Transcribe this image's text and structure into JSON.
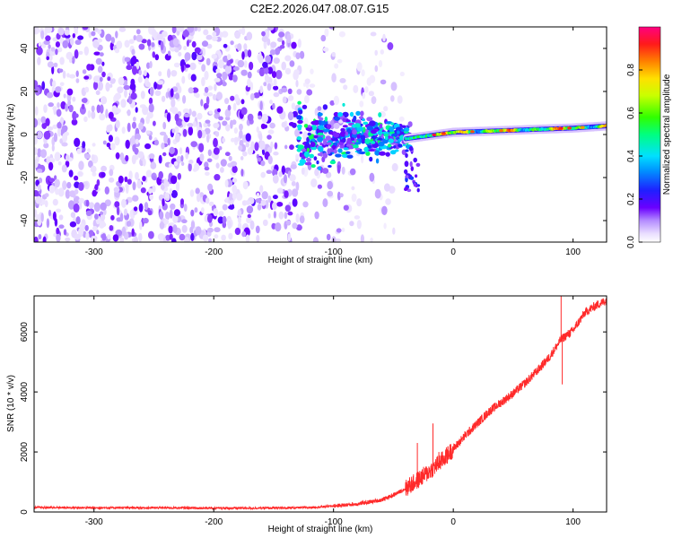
{
  "title": "C2E2.2026.047.08.07.G15",
  "chart_data": [
    {
      "type": "heatmap",
      "xlabel": "Height of straight line (km)",
      "ylabel": "Frequency (Hz)",
      "xlim": [
        -350,
        128
      ],
      "ylim": [
        -50,
        50
      ],
      "x_ticks": [
        -300,
        -200,
        -100,
        0,
        100
      ],
      "x_tick_labels": [
        "-300",
        "-200",
        "-100",
        "0",
        "100"
      ],
      "y_ticks": [
        -40,
        -20,
        0,
        20,
        40
      ],
      "y_tick_labels": [
        "-40",
        "-20",
        "0",
        "20",
        "40"
      ],
      "colorbar": {
        "label": "Normalized spectral amplitude",
        "range": [
          0,
          1
        ],
        "ticks": [
          0.0,
          0.2,
          0.4,
          0.6,
          0.8
        ],
        "tick_labels": [
          "0.0",
          "0.2",
          "0.4",
          "0.6",
          "0.8"
        ],
        "colormap": "white-purple-blue-cyan-green-yellow-red-magenta"
      },
      "features": [
        {
          "name": "noise-floor",
          "x_range": [
            -350,
            -130
          ],
          "frequency_range": [
            -50,
            50
          ],
          "amplitude": "0.05-0.15"
        },
        {
          "name": "transition",
          "x_range": [
            -130,
            -40
          ],
          "frequency_center": 0,
          "frequency_spread": 12,
          "amplitude": "0.1-0.45"
        },
        {
          "name": "signal-line",
          "x_range": [
            -40,
            128
          ],
          "frequency": [
            [
              -40,
              -2
            ],
            [
              0,
              1
            ],
            [
              50,
              2
            ],
            [
              100,
              3
            ],
            [
              128,
              4
            ]
          ],
          "amplitude": "0.6-0.95"
        }
      ],
      "colors": {
        "low": "#e6d8ff",
        "mid": "#6a00ff",
        "high": "#ff2020"
      }
    },
    {
      "type": "line",
      "xlabel": "Height of straight line (km)",
      "ylabel": "SNR (10 * v/v)",
      "xlim": [
        -350,
        128
      ],
      "ylim": [
        0,
        7200
      ],
      "x_ticks": [
        -300,
        -200,
        -100,
        0,
        100
      ],
      "x_tick_labels": [
        "-300",
        "-200",
        "-100",
        "0",
        "100"
      ],
      "y_ticks": [
        0,
        2000,
        4000,
        6000
      ],
      "y_tick_labels": [
        "0",
        "2000",
        "4000",
        "6000"
      ],
      "series": [
        {
          "name": "SNR",
          "color": "#ff2a2a",
          "x": [
            -350,
            -300,
            -250,
            -200,
            -150,
            -120,
            -100,
            -80,
            -60,
            -50,
            -40,
            -30,
            -20,
            -10,
            0,
            10,
            20,
            30,
            40,
            50,
            60,
            70,
            80,
            90,
            95,
            100,
            110,
            120,
            128
          ],
          "y": [
            150,
            140,
            140,
            130,
            130,
            150,
            200,
            270,
            400,
            560,
            780,
            1050,
            1350,
            1700,
            2100,
            2550,
            2950,
            3350,
            3650,
            3950,
            4300,
            4700,
            5150,
            5750,
            5900,
            6050,
            6650,
            6900,
            7050
          ]
        }
      ],
      "spikes": [
        {
          "x": -30,
          "y": 2300
        },
        {
          "x": -17,
          "y": 2950
        },
        {
          "x": -12,
          "y": 2000
        },
        {
          "x": 90,
          "y": 7200
        },
        {
          "x": 91,
          "y": 4250
        }
      ]
    }
  ]
}
